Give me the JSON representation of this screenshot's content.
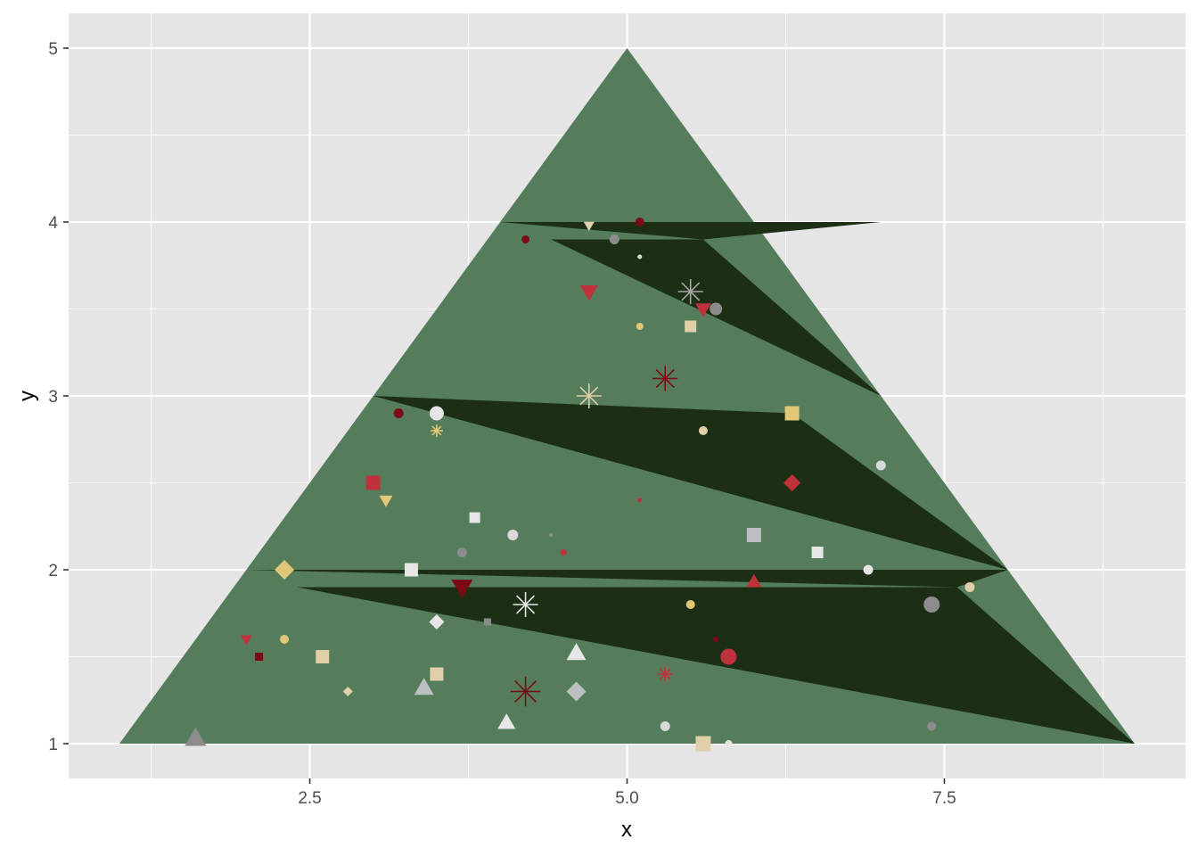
{
  "chart_data": {
    "type": "scatter",
    "xlabel": "x",
    "ylabel": "y",
    "xlim": [
      0.6,
      9.4
    ],
    "ylim": [
      0.8,
      5.2
    ],
    "x_ticks": [
      2.5,
      5.0,
      7.5
    ],
    "x_tick_labels": [
      "2.5",
      "5.0",
      "7.5"
    ],
    "y_ticks": [
      1,
      2,
      3,
      4,
      5
    ],
    "y_tick_labels": [
      "1",
      "2",
      "3",
      "4",
      "5"
    ],
    "x_minor_ticks": [
      1.25,
      3.75,
      6.25,
      8.75
    ],
    "y_minor_ticks": [
      1.5,
      2.5,
      3.5,
      4.5
    ],
    "grid": true,
    "colors": {
      "panel_background": "#e5e5e5",
      "grid": "#ffffff",
      "tree_light": "#557d5b",
      "tree_dark": "#1c2f15"
    },
    "tree_outline": [
      [
        1,
        1
      ],
      [
        5,
        5
      ],
      [
        9,
        1
      ]
    ],
    "tree_shading": [
      [
        [
          4,
          4
        ],
        [
          7,
          4
        ],
        [
          5.6,
          3.9
        ]
      ],
      [
        [
          4.4,
          3.9
        ],
        [
          5.6,
          3.9
        ],
        [
          7,
          3
        ]
      ],
      [
        [
          3,
          3
        ],
        [
          8,
          2
        ],
        [
          6.3,
          2.9
        ]
      ],
      [
        [
          3.5,
          2.9
        ],
        [
          6.3,
          2.9
        ],
        [
          8,
          2
        ]
      ],
      [
        [
          2,
          2
        ],
        [
          8,
          2
        ],
        [
          7.6,
          1.9
        ]
      ],
      [
        [
          2.4,
          1.9
        ],
        [
          7.6,
          1.9
        ],
        [
          9,
          1
        ]
      ]
    ],
    "points": [
      {
        "x": 4.7,
        "y": 3.98,
        "shape": "triangle-down",
        "size": 12,
        "color": "#e0cfa8"
      },
      {
        "x": 5.1,
        "y": 4.0,
        "shape": "circle",
        "size": 10,
        "color": "#7b0a14"
      },
      {
        "x": 4.2,
        "y": 3.9,
        "shape": "circle",
        "size": 9,
        "color": "#7b0a14"
      },
      {
        "x": 4.9,
        "y": 3.9,
        "shape": "circle",
        "size": 11,
        "color": "#8c8c8c"
      },
      {
        "x": 5.1,
        "y": 3.8,
        "shape": "circle",
        "size": 5,
        "color": "#d9d9d9"
      },
      {
        "x": 5.5,
        "y": 3.6,
        "shape": "asterisk",
        "size": 20,
        "color": "#a6a6a6"
      },
      {
        "x": 4.7,
        "y": 3.6,
        "shape": "triangle-down",
        "size": 20,
        "color": "#c0323b"
      },
      {
        "x": 5.7,
        "y": 3.5,
        "shape": "circle",
        "size": 14,
        "color": "#8c8c8c"
      },
      {
        "x": 5.6,
        "y": 3.5,
        "shape": "triangle-down",
        "size": 18,
        "color": "#c0323b"
      },
      {
        "x": 5.1,
        "y": 3.4,
        "shape": "circle",
        "size": 8,
        "color": "#e1c879"
      },
      {
        "x": 5.5,
        "y": 3.4,
        "shape": "square",
        "size": 13,
        "color": "#e0cfa8"
      },
      {
        "x": 5.3,
        "y": 3.1,
        "shape": "asterisk",
        "size": 20,
        "color": "#7b0a14"
      },
      {
        "x": 4.7,
        "y": 3.0,
        "shape": "asterisk",
        "size": 20,
        "color": "#e0cfa8"
      },
      {
        "x": 3.2,
        "y": 2.9,
        "shape": "circle",
        "size": 11,
        "color": "#7b0a14"
      },
      {
        "x": 3.5,
        "y": 2.8,
        "shape": "asterisk",
        "size": 10,
        "color": "#e1c879"
      },
      {
        "x": 3.5,
        "y": 2.9,
        "shape": "circle",
        "size": 16,
        "color": "#e6e6e6"
      },
      {
        "x": 6.3,
        "y": 2.9,
        "shape": "square",
        "size": 16,
        "color": "#e1c879"
      },
      {
        "x": 5.6,
        "y": 2.8,
        "shape": "circle",
        "size": 10,
        "color": "#e0cfa8"
      },
      {
        "x": 7.0,
        "y": 2.6,
        "shape": "circle",
        "size": 11,
        "color": "#d9d9d9"
      },
      {
        "x": 3.0,
        "y": 2.5,
        "shape": "square",
        "size": 16,
        "color": "#c0323b"
      },
      {
        "x": 6.3,
        "y": 2.5,
        "shape": "diamond",
        "size": 19,
        "color": "#c0323b"
      },
      {
        "x": 3.1,
        "y": 2.4,
        "shape": "triangle-down",
        "size": 15,
        "color": "#e1c879"
      },
      {
        "x": 5.1,
        "y": 2.4,
        "shape": "circle",
        "size": 5,
        "color": "#c0323b"
      },
      {
        "x": 3.8,
        "y": 2.3,
        "shape": "square",
        "size": 12,
        "color": "#e6e6e6"
      },
      {
        "x": 4.1,
        "y": 2.2,
        "shape": "circle",
        "size": 12,
        "color": "#d9d9d9"
      },
      {
        "x": 4.4,
        "y": 2.2,
        "shape": "circle",
        "size": 4,
        "color": "#8c8c8c"
      },
      {
        "x": 6.0,
        "y": 2.2,
        "shape": "square",
        "size": 16,
        "color": "#bcbec0"
      },
      {
        "x": 3.7,
        "y": 2.1,
        "shape": "circle",
        "size": 11,
        "color": "#8c8c8c"
      },
      {
        "x": 4.5,
        "y": 2.1,
        "shape": "circle",
        "size": 7,
        "color": "#c0323b"
      },
      {
        "x": 6.5,
        "y": 2.1,
        "shape": "square",
        "size": 13,
        "color": "#e6e6e6"
      },
      {
        "x": 2.3,
        "y": 2.0,
        "shape": "diamond",
        "size": 22,
        "color": "#e1c879"
      },
      {
        "x": 3.3,
        "y": 2.0,
        "shape": "square",
        "size": 15,
        "color": "#e6e6e6"
      },
      {
        "x": 6.9,
        "y": 2.0,
        "shape": "circle",
        "size": 11,
        "color": "#e6e6e6"
      },
      {
        "x": 3.7,
        "y": 1.9,
        "shape": "triangle-down",
        "size": 24,
        "color": "#7b0a14"
      },
      {
        "x": 6.0,
        "y": 1.93,
        "shape": "triangle",
        "size": 17,
        "color": "#c0323b"
      },
      {
        "x": 7.7,
        "y": 1.9,
        "shape": "circle",
        "size": 11,
        "color": "#e0cfa8"
      },
      {
        "x": 4.2,
        "y": 1.8,
        "shape": "asterisk",
        "size": 20,
        "color": "#e6e6e6"
      },
      {
        "x": 5.5,
        "y": 1.8,
        "shape": "circle",
        "size": 10,
        "color": "#e1c879"
      },
      {
        "x": 7.4,
        "y": 1.8,
        "shape": "circle",
        "size": 18,
        "color": "#8c8c8c"
      },
      {
        "x": 3.5,
        "y": 1.7,
        "shape": "diamond",
        "size": 17,
        "color": "#e6e6e6"
      },
      {
        "x": 3.9,
        "y": 1.7,
        "shape": "square",
        "size": 8,
        "color": "#8c8c8c"
      },
      {
        "x": 2.0,
        "y": 1.6,
        "shape": "triangle-down",
        "size": 13,
        "color": "#c0323b"
      },
      {
        "x": 2.3,
        "y": 1.6,
        "shape": "circle",
        "size": 10,
        "color": "#e1c879"
      },
      {
        "x": 5.7,
        "y": 1.6,
        "shape": "circle",
        "size": 6,
        "color": "#7b0a14"
      },
      {
        "x": 2.1,
        "y": 1.5,
        "shape": "square",
        "size": 9,
        "color": "#7b0a14"
      },
      {
        "x": 2.6,
        "y": 1.5,
        "shape": "square",
        "size": 15,
        "color": "#e0cfa8"
      },
      {
        "x": 4.6,
        "y": 1.52,
        "shape": "triangle",
        "size": 22,
        "color": "#e6e6e6"
      },
      {
        "x": 5.8,
        "y": 1.5,
        "shape": "circle",
        "size": 18,
        "color": "#c0323b"
      },
      {
        "x": 3.5,
        "y": 1.4,
        "shape": "square",
        "size": 15,
        "color": "#e0cfa8"
      },
      {
        "x": 5.3,
        "y": 1.4,
        "shape": "asterisk",
        "size": 12,
        "color": "#c0323b"
      },
      {
        "x": 3.4,
        "y": 1.32,
        "shape": "triangle",
        "size": 22,
        "color": "#bcbec0"
      },
      {
        "x": 2.8,
        "y": 1.3,
        "shape": "diamond",
        "size": 11,
        "color": "#e0cfa8"
      },
      {
        "x": 4.2,
        "y": 1.3,
        "shape": "asterisk",
        "size": 24,
        "color": "#7b0a14"
      },
      {
        "x": 4.6,
        "y": 1.3,
        "shape": "diamond",
        "size": 22,
        "color": "#bcbec0"
      },
      {
        "x": 4.05,
        "y": 1.12,
        "shape": "triangle",
        "size": 20,
        "color": "#e6e6e6"
      },
      {
        "x": 5.3,
        "y": 1.1,
        "shape": "circle",
        "size": 11,
        "color": "#d9d9d9"
      },
      {
        "x": 7.4,
        "y": 1.1,
        "shape": "circle",
        "size": 10,
        "color": "#8c8c8c"
      },
      {
        "x": 1.6,
        "y": 1.03,
        "shape": "triangle",
        "size": 24,
        "color": "#8c8c8c"
      },
      {
        "x": 5.6,
        "y": 1.0,
        "shape": "square",
        "size": 17,
        "color": "#e0cfa8"
      },
      {
        "x": 5.8,
        "y": 1.0,
        "shape": "circle",
        "size": 8,
        "color": "#e6e6e6"
      }
    ]
  }
}
